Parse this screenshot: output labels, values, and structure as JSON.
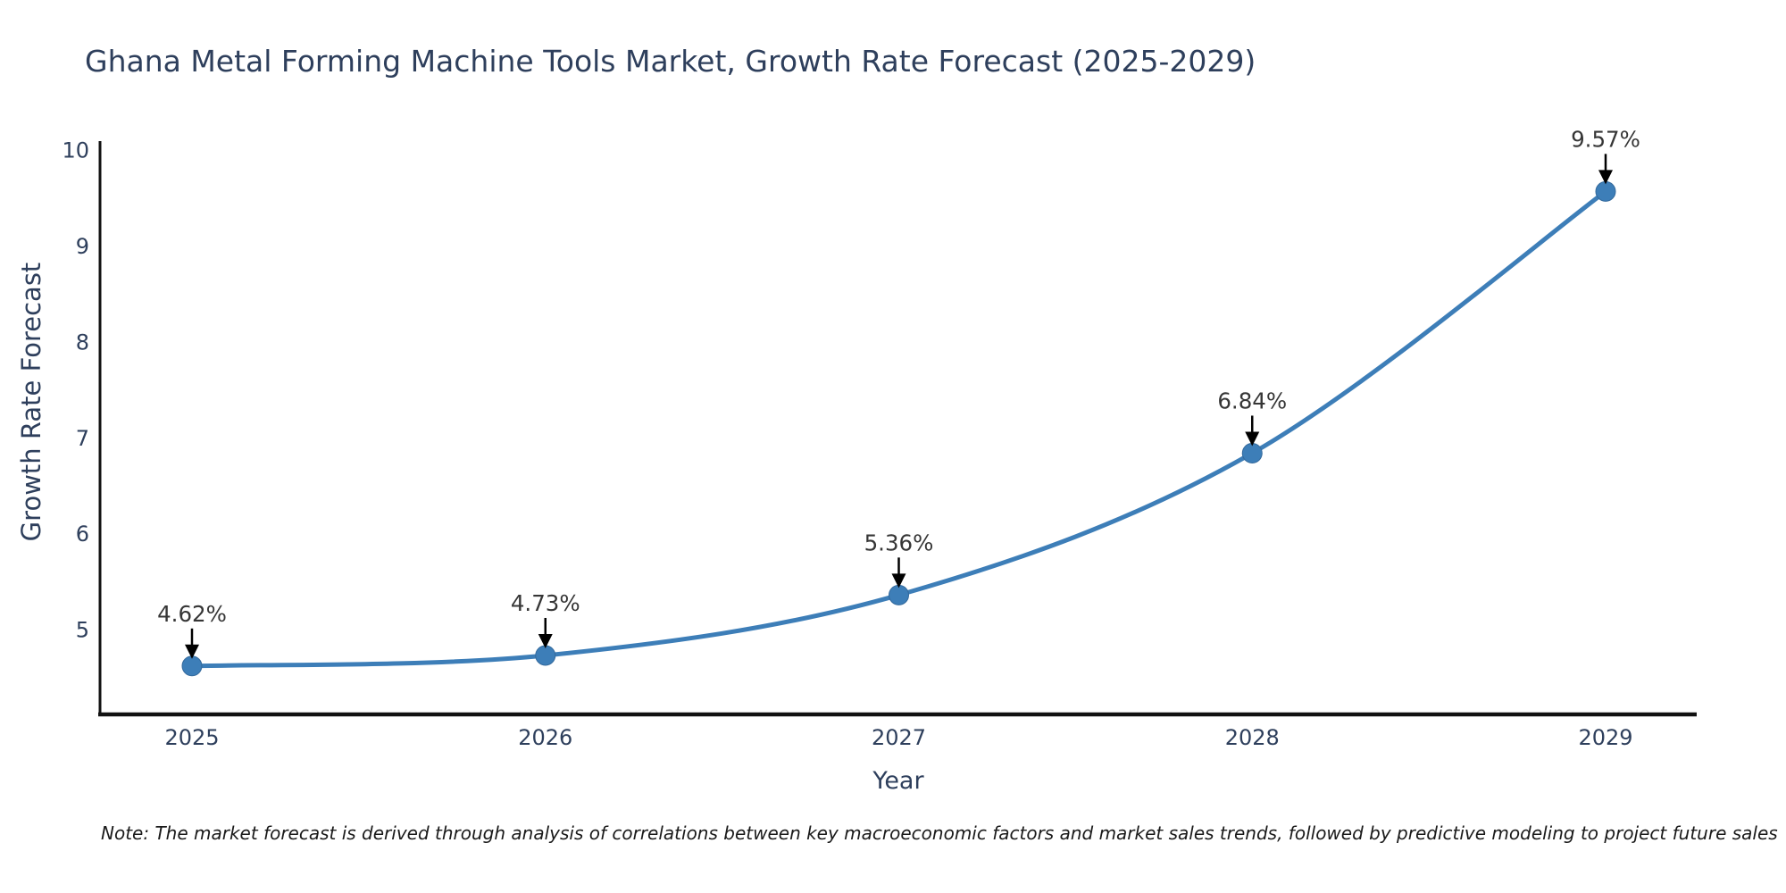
{
  "chart_data": {
    "type": "line",
    "title": "Ghana Metal Forming Machine Tools Market, Growth Rate Forecast (2025-2029)",
    "xlabel": "Year",
    "ylabel": "Growth Rate Forecast",
    "categories": [
      "2025",
      "2026",
      "2027",
      "2028",
      "2029"
    ],
    "values": [
      4.62,
      4.73,
      5.36,
      6.84,
      9.57
    ],
    "point_labels": [
      "4.62%",
      "4.73%",
      "5.36%",
      "6.84%",
      "9.57%"
    ],
    "yticks": [
      5,
      6,
      7,
      8,
      9,
      10
    ],
    "ylim": [
      4.115,
      10.095
    ],
    "grid": false,
    "legend": "none",
    "smooth": true,
    "colors": {
      "line": "#3d7eb8",
      "marker": "#3d7eb8",
      "marker_edge": "#33699c",
      "axis": "#111111",
      "title": "#2e3f5c",
      "tick": "#2e3f5c",
      "axis_label": "#2e3f5c",
      "annotation_text": "#363636",
      "annotation_arrow": "#000000",
      "note": "#1a1a1a"
    }
  },
  "note": "Note: The market forecast is derived through analysis of correlations between key macroeconomic factors and market sales trends, followed by predictive modeling to project future sales"
}
